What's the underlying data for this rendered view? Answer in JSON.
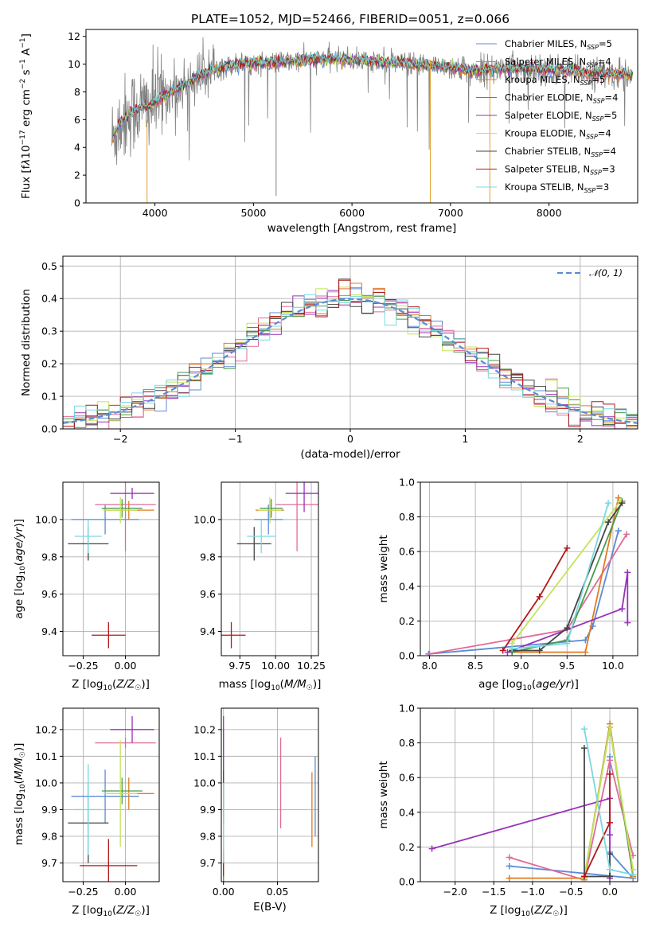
{
  "title": "PLATE=1052, MJD=52466, FIBERID=0051, z=0.066",
  "colors": {
    "Chabrier MILES": "#5b8bd6",
    "Salpeter MILES": "#e06a98",
    "Kroupa MILES": "#e07b20",
    "Chabrier ELODIE": "#4a9a4a",
    "Salpeter ELODIE": "#9932b8",
    "Kroupa ELODIE": "#c4e45a",
    "Chabrier STELIB": "#454545",
    "Salpeter STELIB": "#b01818",
    "Kroupa STELIB": "#7ad8e0",
    "data": "#808080",
    "normal": "#5b8bd6"
  },
  "chart_data": [
    {
      "type": "line",
      "panel": "spectrum",
      "title": "PLATE=1052, MJD=52466, FIBERID=0051, z=0.066",
      "xlabel": "wavelength [Angstrom, rest frame]",
      "ylabel": "Flux [fλ10⁻¹⁷ erg cm⁻² s⁻¹ A⁻¹]",
      "xlim": [
        3300,
        8900
      ],
      "ylim": [
        0,
        12.5
      ],
      "xticks": [
        4000,
        5000,
        6000,
        7000,
        8000
      ],
      "yticks": [
        0,
        2,
        4,
        6,
        8,
        10,
        12
      ],
      "legend_position": "top-right",
      "legend": [
        {
          "name": "Chabrier MILES",
          "nssp": "5"
        },
        {
          "name": "Salpeter MILES",
          "nssp": "4"
        },
        {
          "name": "Kroupa MILES",
          "nssp": "5"
        },
        {
          "name": "Chabrier ELODIE",
          "nssp": "4"
        },
        {
          "name": "Salpeter ELODIE",
          "nssp": "5"
        },
        {
          "name": "Kroupa ELODIE",
          "nssp": "4"
        },
        {
          "name": "Chabrier STELIB",
          "nssp": "4"
        },
        {
          "name": "Salpeter STELIB",
          "nssp": "3"
        },
        {
          "name": "Kroupa STELIB",
          "nssp": "3"
        }
      ],
      "continuum": {
        "x": [
          3560,
          3650,
          3750,
          3850,
          3950,
          4050,
          4150,
          4250,
          4350,
          4450,
          4550,
          4700,
          4850,
          5000,
          5200,
          5400,
          5600,
          5800,
          6000,
          6200,
          6400,
          6600,
          6800,
          7000,
          7200,
          7400,
          7600,
          7800,
          8000,
          8200,
          8400,
          8600,
          8800
        ],
        "y": [
          4.6,
          5.8,
          6.5,
          6.9,
          7.0,
          7.6,
          8.0,
          8.3,
          8.7,
          9.1,
          9.5,
          9.8,
          10.0,
          10.1,
          10.1,
          10.2,
          10.3,
          10.4,
          10.3,
          10.2,
          10.1,
          10.0,
          9.9,
          9.8,
          9.5,
          9.6,
          9.7,
          9.7,
          9.6,
          9.5,
          9.4,
          9.3,
          9.3
        ]
      }
    },
    {
      "type": "histogram",
      "panel": "residuals",
      "xlabel": "(data-model)/error",
      "ylabel": "Normed distribution",
      "xlim": [
        -2.5,
        2.5
      ],
      "ylim": [
        0,
        0.53
      ],
      "xticks": [
        -2,
        -1,
        0,
        1,
        2
      ],
      "yticks": [
        0.0,
        0.1,
        0.2,
        0.3,
        0.4,
        0.5
      ],
      "bin_width": 0.1,
      "bin_start": -2.6,
      "legend_position": "top-right",
      "legend_label": "N(0,1)",
      "reference_curve": "normal(0,1)"
    },
    {
      "type": "scatter",
      "panel": "age-vs-metallicity",
      "xlabel": "Z [log10(Z/Z☉)]",
      "ylabel": "age  [log10(age/yr)]",
      "xlim": [
        -0.37,
        0.2
      ],
      "ylim": [
        9.27,
        10.2
      ],
      "xticks": [
        -0.25,
        0.0
      ],
      "yticks": [
        9.4,
        9.6,
        9.8,
        10.0
      ],
      "points": [
        {
          "series": "Chabrier MILES",
          "x": -0.12,
          "y": 10.0,
          "xerr": 0.2,
          "yerr": 0.08
        },
        {
          "series": "Salpeter MILES",
          "x": 0.0,
          "y": 10.08,
          "xerr": 0.18,
          "yerr": 0.25
        },
        {
          "series": "Kroupa MILES",
          "x": 0.02,
          "y": 10.05,
          "xerr": 0.15,
          "yerr": 0.05
        },
        {
          "series": "Chabrier ELODIE",
          "x": -0.02,
          "y": 10.06,
          "xerr": 0.12,
          "yerr": 0.05
        },
        {
          "series": "Salpeter ELODIE",
          "x": 0.04,
          "y": 10.14,
          "xerr": 0.13,
          "yerr": 0.03
        },
        {
          "series": "Kroupa ELODIE",
          "x": -0.03,
          "y": 10.05,
          "xerr": 0.1,
          "yerr": 0.07
        },
        {
          "series": "Chabrier STELIB",
          "x": -0.22,
          "y": 9.87,
          "xerr": 0.12,
          "yerr": 0.09
        },
        {
          "series": "Salpeter STELIB",
          "x": -0.1,
          "y": 9.38,
          "xerr": 0.1,
          "yerr": 0.07
        },
        {
          "series": "Kroupa STELIB",
          "x": -0.22,
          "y": 9.91,
          "xerr": 0.08,
          "yerr": 0.09
        }
      ]
    },
    {
      "type": "scatter",
      "panel": "age-vs-mass",
      "xlabel": "mass [log10(M/M☉)]",
      "ylabel": "",
      "xlim": [
        9.62,
        10.3
      ],
      "ylim": [
        9.27,
        10.2
      ],
      "xticks": [
        9.75,
        10.0,
        10.25
      ],
      "yticks": [
        9.4,
        9.6,
        9.8,
        10.0
      ],
      "points": [
        {
          "series": "Chabrier MILES",
          "x": 9.95,
          "y": 10.0,
          "xerr": 0.1,
          "yerr": 0.08
        },
        {
          "series": "Salpeter MILES",
          "x": 10.15,
          "y": 10.08,
          "xerr": 0.15,
          "yerr": 0.25
        },
        {
          "series": "Kroupa MILES",
          "x": 9.96,
          "y": 10.05,
          "xerr": 0.1,
          "yerr": 0.05
        },
        {
          "series": "Chabrier ELODIE",
          "x": 9.97,
          "y": 10.06,
          "xerr": 0.08,
          "yerr": 0.05
        },
        {
          "series": "Salpeter ELODIE",
          "x": 10.2,
          "y": 10.14,
          "xerr": 0.13,
          "yerr": 0.1
        },
        {
          "series": "Kroupa ELODIE",
          "x": 9.96,
          "y": 10.05,
          "xerr": 0.08,
          "yerr": 0.07
        },
        {
          "series": "Chabrier STELIB",
          "x": 9.85,
          "y": 9.87,
          "xerr": 0.12,
          "yerr": 0.09
        },
        {
          "series": "Salpeter STELIB",
          "x": 9.69,
          "y": 9.38,
          "xerr": 0.1,
          "yerr": 0.07
        },
        {
          "series": "Kroupa STELIB",
          "x": 9.9,
          "y": 9.91,
          "xerr": 0.1,
          "yerr": 0.09
        }
      ]
    },
    {
      "type": "line",
      "panel": "mass-weight-vs-age",
      "xlabel": "age  [log10(age/yr)]",
      "ylabel": "mass weight",
      "xlim": [
        7.9,
        10.27
      ],
      "ylim": [
        0,
        1.0
      ],
      "xticks": [
        8.0,
        8.5,
        9.0,
        9.5,
        10.0
      ],
      "yticks": [
        0.0,
        0.2,
        0.4,
        0.6,
        0.8,
        1.0
      ],
      "series": [
        {
          "name": "Chabrier MILES",
          "x": [
            7.99,
            9.7,
            9.78,
            10.06
          ],
          "y": [
            0.01,
            0.09,
            0.17,
            0.72
          ]
        },
        {
          "name": "Salpeter MILES",
          "x": [
            8.0,
            9.5,
            10.15
          ],
          "y": [
            0.01,
            0.15,
            0.7
          ]
        },
        {
          "name": "Kroupa MILES",
          "x": [
            8.9,
            9.7,
            10.06
          ],
          "y": [
            0.02,
            0.02,
            0.91
          ]
        },
        {
          "name": "Chabrier ELODIE",
          "x": [
            8.9,
            9.5,
            10.1
          ],
          "y": [
            0.02,
            0.09,
            0.89
          ]
        },
        {
          "name": "Salpeter ELODIE",
          "x": [
            8.85,
            10.1,
            10.16,
            10.16
          ],
          "y": [
            0.02,
            0.27,
            0.48,
            0.19
          ]
        },
        {
          "name": "Kroupa ELODIE",
          "x": [
            8.9,
            10.08
          ],
          "y": [
            0.07,
            0.89
          ]
        },
        {
          "name": "Chabrier STELIB",
          "x": [
            8.9,
            9.2,
            9.5,
            9.95,
            10.1
          ],
          "y": [
            0.03,
            0.03,
            0.16,
            0.77,
            0.88
          ]
        },
        {
          "name": "Salpeter STELIB",
          "x": [
            8.8,
            9.2,
            9.5
          ],
          "y": [
            0.03,
            0.34,
            0.62
          ]
        },
        {
          "name": "Kroupa STELIB",
          "x": [
            8.9,
            9.5,
            9.95
          ],
          "y": [
            0.04,
            0.07,
            0.88
          ]
        }
      ]
    },
    {
      "type": "scatter",
      "panel": "mass-vs-metallicity",
      "xlabel": "Z [log10(Z/Z☉)]",
      "ylabel": "mass [log10(M/M☉)]",
      "xlim": [
        -0.37,
        0.2
      ],
      "ylim": [
        9.63,
        10.28
      ],
      "xticks": [
        -0.25,
        0.0
      ],
      "yticks": [
        9.7,
        9.8,
        9.9,
        10.0,
        10.1,
        10.2
      ],
      "points": [
        {
          "series": "Chabrier MILES",
          "x": -0.12,
          "y": 9.95,
          "xerr": 0.2,
          "yerr": 0.1
        },
        {
          "series": "Salpeter MILES",
          "x": 0.0,
          "y": 10.15,
          "xerr": 0.18,
          "yerr": 0.02
        },
        {
          "series": "Kroupa MILES",
          "x": 0.02,
          "y": 9.96,
          "xerr": 0.15,
          "yerr": 0.06
        },
        {
          "series": "Chabrier ELODIE",
          "x": -0.02,
          "y": 9.97,
          "xerr": 0.12,
          "yerr": 0.05
        },
        {
          "series": "Salpeter ELODIE",
          "x": 0.04,
          "y": 10.2,
          "xerr": 0.13,
          "yerr": 0.05
        },
        {
          "series": "Kroupa ELODIE",
          "x": -0.03,
          "y": 9.96,
          "xerr": 0.1,
          "yerr": 0.2
        },
        {
          "series": "Chabrier STELIB",
          "x": -0.22,
          "y": 9.85,
          "xerr": 0.12,
          "yerr": 0.15
        },
        {
          "series": "Salpeter STELIB",
          "x": -0.1,
          "y": 9.69,
          "xerr": 0.17,
          "yerr": 0.1
        },
        {
          "series": "Kroupa STELIB",
          "x": -0.22,
          "y": 9.9,
          "xerr": 0.08,
          "yerr": 0.17
        }
      ]
    },
    {
      "type": "scatter",
      "panel": "mass-vs-extinction",
      "xlabel": "E(B-V)",
      "ylabel": "",
      "xlim": [
        -0.002,
        0.088
      ],
      "ylim": [
        9.63,
        10.28
      ],
      "xticks": [
        0.0,
        0.05
      ],
      "yticks": [
        9.7,
        9.8,
        9.9,
        10.0,
        10.1,
        10.2
      ],
      "points": [
        {
          "series": "Chabrier MILES",
          "x": 0.085,
          "y": 9.95,
          "yerr": 0.15
        },
        {
          "series": "Salpeter MILES",
          "x": 0.053,
          "y": 10.0,
          "yerr": 0.17
        },
        {
          "series": "Kroupa MILES",
          "x": 0.082,
          "y": 9.9,
          "yerr": 0.14
        },
        {
          "series": "Chabrier ELODIE",
          "x": 0.0,
          "y": 9.9,
          "yerr": 0.3
        },
        {
          "series": "Salpeter ELODIE",
          "x": 0.0,
          "y": 10.15,
          "yerr": 0.1
        },
        {
          "series": "Kroupa ELODIE",
          "x": 0.0,
          "y": 9.85,
          "yerr": 0.2
        },
        {
          "series": "Chabrier STELIB",
          "x": 0.0,
          "y": 9.95,
          "yerr": 0.1
        },
        {
          "series": "Salpeter STELIB",
          "x": 0.0,
          "y": 9.7,
          "yerr": 0.05
        },
        {
          "series": "Kroupa STELIB",
          "x": 0.0,
          "y": 9.85,
          "yerr": 0.15
        }
      ]
    },
    {
      "type": "line",
      "panel": "mass-weight-vs-metallicity",
      "xlabel": "Z [log10(Z/Z☉)]",
      "ylabel": "mass weight",
      "xlim": [
        -2.45,
        0.36
      ],
      "ylim": [
        0,
        1.0
      ],
      "xticks": [
        -2.0,
        -1.5,
        -1.0,
        -0.5,
        0.0
      ],
      "yticks": [
        0.0,
        0.2,
        0.4,
        0.6,
        0.8,
        1.0
      ],
      "series": [
        {
          "name": "Chabrier MILES",
          "x": [
            -1.3,
            0.3,
            0.0,
            0.0
          ],
          "y": [
            0.09,
            0.02,
            0.17,
            0.72
          ]
        },
        {
          "name": "Salpeter MILES",
          "x": [
            -1.3,
            -0.33,
            0.0,
            0.3
          ],
          "y": [
            0.14,
            0.01,
            0.7,
            0.15
          ]
        },
        {
          "name": "Kroupa MILES",
          "x": [
            -1.3,
            -0.33,
            0.0,
            0.3
          ],
          "y": [
            0.02,
            0.02,
            0.91,
            0.03
          ]
        },
        {
          "name": "Chabrier ELODIE",
          "x": [
            -0.33,
            0.0,
            0.3
          ],
          "y": [
            0.02,
            0.89,
            0.04
          ]
        },
        {
          "name": "Salpeter ELODIE",
          "x": [
            -2.3,
            0.0,
            0.0,
            0.0
          ],
          "y": [
            0.19,
            0.48,
            0.27,
            0.02
          ]
        },
        {
          "name": "Kroupa ELODIE",
          "x": [
            -0.33,
            0.0,
            0.3
          ],
          "y": [
            0.02,
            0.89,
            0.07
          ]
        },
        {
          "name": "Chabrier STELIB",
          "x": [
            -0.33,
            -0.33,
            0.0,
            0.0
          ],
          "y": [
            0.77,
            0.03,
            0.03,
            0.16
          ]
        },
        {
          "name": "Salpeter STELIB",
          "x": [
            -0.33,
            0.0,
            0.0
          ],
          "y": [
            0.03,
            0.34,
            0.62
          ]
        },
        {
          "name": "Kroupa STELIB",
          "x": [
            -0.33,
            0.0,
            0.3
          ],
          "y": [
            0.88,
            0.07,
            0.04
          ]
        }
      ]
    }
  ]
}
